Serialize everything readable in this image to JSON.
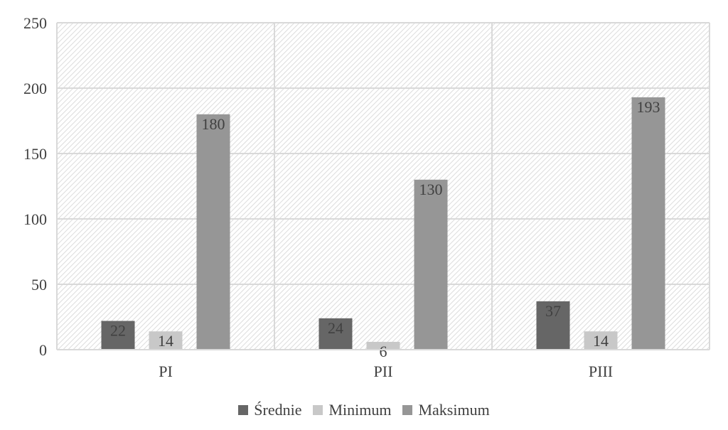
{
  "chart_data": {
    "type": "bar",
    "categories": [
      "PI",
      "PII",
      "PIII"
    ],
    "series": [
      {
        "name": "Średnie",
        "values": [
          22,
          24,
          37
        ],
        "color": "#666666"
      },
      {
        "name": "Minimum",
        "values": [
          14,
          6,
          14
        ],
        "color": "#c8c8c8"
      },
      {
        "name": "Maksimum",
        "values": [
          180,
          130,
          193
        ],
        "color": "#969696"
      }
    ],
    "ylim": [
      0,
      250
    ],
    "yticks": [
      "0",
      "50",
      "100",
      "150",
      "200",
      "250"
    ],
    "grid": true,
    "legend_position": "bottom",
    "data_labels": true,
    "background_pattern": "diagonal-hatch"
  }
}
